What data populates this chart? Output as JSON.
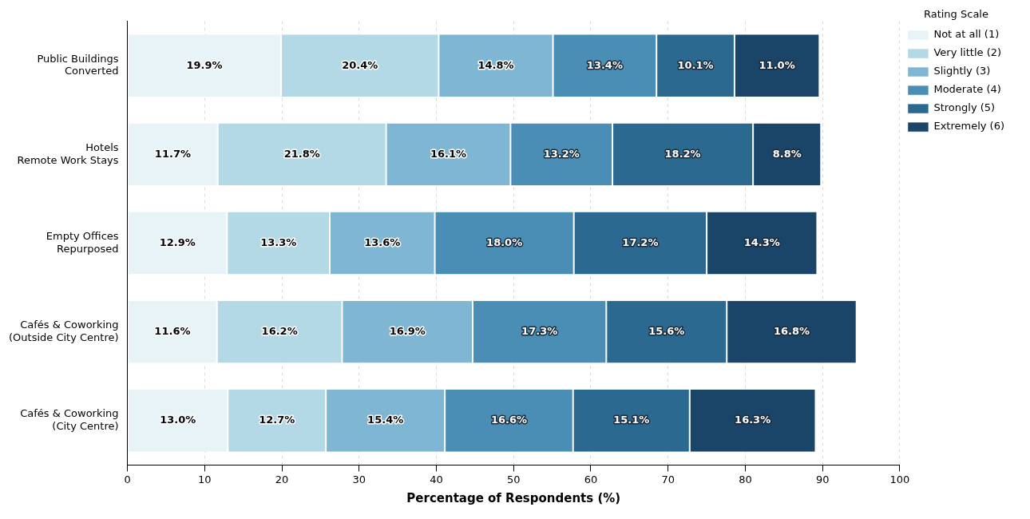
{
  "chart_data": {
    "type": "bar",
    "orientation": "horizontal",
    "stacked": true,
    "xlabel": "Percentage of Respondents (%)",
    "legend_title": "Rating Scale",
    "legend": "top right",
    "grid": "x",
    "categories": [
      "Public Buildings\nConverted",
      "Hotels\nRemote Work Stays",
      "Empty Offices\nRepurposed",
      "Cafés & Coworking\n(Outside City Centre)",
      "Cafés & Coworking\n(City Centre)"
    ],
    "xlim": [
      0,
      100
    ],
    "xticks": [
      0,
      10,
      20,
      30,
      40,
      50,
      60,
      70,
      80,
      90,
      100
    ],
    "series": [
      {
        "name": "Not at all (1)",
        "color": "#e8f3f8",
        "values": [
          19.9,
          11.7,
          12.9,
          11.6,
          13.0
        ],
        "value_labels": [
          "19.9%",
          "11.7%",
          "12.9%",
          "11.6%",
          "13.0%"
        ]
      },
      {
        "name": "Very little (2)",
        "color": "#b3d8e6",
        "values": [
          20.4,
          21.8,
          13.3,
          16.2,
          12.7
        ],
        "value_labels": [
          "20.4%",
          "21.8%",
          "13.3%",
          "16.2%",
          "12.7%"
        ]
      },
      {
        "name": "Slightly (3)",
        "color": "#7fb6d4",
        "values": [
          14.8,
          16.1,
          13.6,
          16.9,
          15.4
        ],
        "value_labels": [
          "14.8%",
          "16.1%",
          "13.6%",
          "16.9%",
          "15.4%"
        ]
      },
      {
        "name": "Moderate (4)",
        "color": "#4a8db5",
        "values": [
          13.4,
          13.2,
          18.0,
          17.3,
          16.6
        ],
        "value_labels": [
          "13.4%",
          "13.2%",
          "18.0%",
          "17.3%",
          "16.6%"
        ]
      },
      {
        "name": "Strongly (5)",
        "color": "#2b6990",
        "values": [
          10.1,
          18.2,
          17.2,
          15.6,
          15.1
        ],
        "value_labels": [
          "10.1%",
          "18.2%",
          "17.2%",
          "15.6%",
          "15.1%"
        ]
      },
      {
        "name": "Extremely (6)",
        "color": "#1a4568",
        "values": [
          11.0,
          8.8,
          14.3,
          16.8,
          16.3
        ],
        "value_labels": [
          "11.0%",
          "8.8%",
          "14.3%",
          "16.8%",
          "16.3%"
        ]
      }
    ]
  }
}
